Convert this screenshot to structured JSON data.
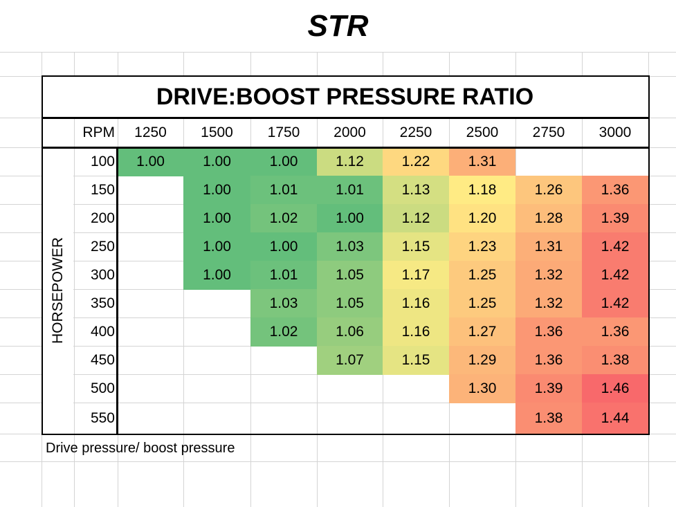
{
  "title": "STR",
  "chart_data": {
    "type": "heatmap",
    "title": "DRIVE:BOOST PRESSURE RATIO",
    "x_header": "RPM",
    "y_header": "HORSEPOWER",
    "x": [
      "1250",
      "1500",
      "1750",
      "2000",
      "2250",
      "2500",
      "2750",
      "3000"
    ],
    "y": [
      "100",
      "150",
      "200",
      "250",
      "300",
      "350",
      "400",
      "450",
      "500",
      "550"
    ],
    "values": [
      [
        "1.00",
        "1.00",
        "1.00",
        "1.12",
        "1.22",
        "1.31",
        null,
        null
      ],
      [
        null,
        "1.00",
        "1.01",
        "1.01",
        "1.13",
        "1.18",
        "1.26",
        "1.36"
      ],
      [
        null,
        "1.00",
        "1.02",
        "1.00",
        "1.12",
        "1.20",
        "1.28",
        "1.39"
      ],
      [
        null,
        "1.00",
        "1.00",
        "1.03",
        "1.15",
        "1.23",
        "1.31",
        "1.42"
      ],
      [
        null,
        "1.00",
        "1.01",
        "1.05",
        "1.17",
        "1.25",
        "1.32",
        "1.42"
      ],
      [
        null,
        null,
        "1.03",
        "1.05",
        "1.16",
        "1.25",
        "1.32",
        "1.42"
      ],
      [
        null,
        null,
        "1.02",
        "1.06",
        "1.16",
        "1.27",
        "1.36",
        "1.36"
      ],
      [
        null,
        null,
        null,
        "1.07",
        "1.15",
        "1.29",
        "1.36",
        "1.38"
      ],
      [
        null,
        null,
        null,
        null,
        null,
        "1.30",
        "1.39",
        "1.46"
      ],
      [
        null,
        null,
        null,
        null,
        null,
        null,
        "1.38",
        "1.44"
      ]
    ],
    "color_scale": {
      "low": "#63BE7B",
      "mid": "#FFEB84",
      "high": "#F8696B"
    },
    "note": "Drive pressure/ boost pressure"
  }
}
